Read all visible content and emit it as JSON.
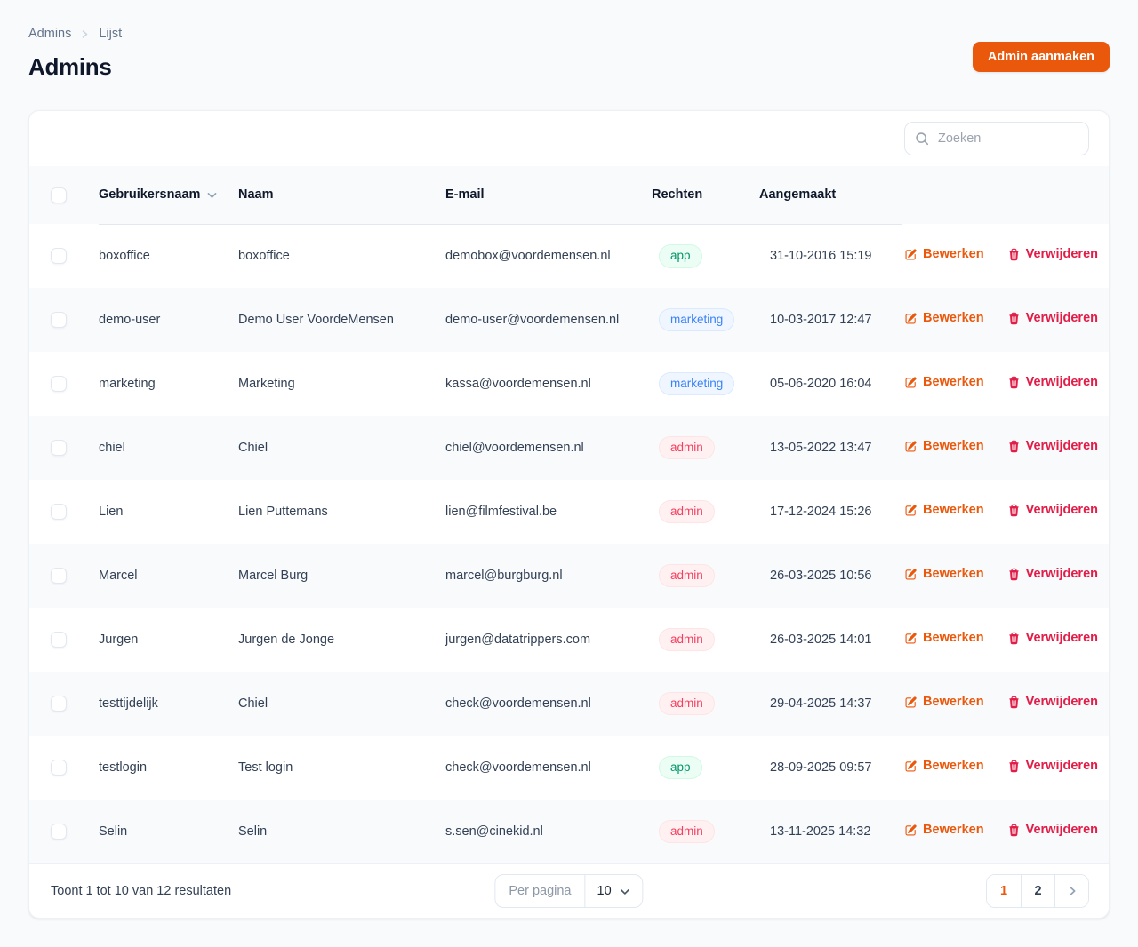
{
  "page": {
    "breadcrumb": [
      "Admins",
      "Lijst"
    ],
    "title": "Admins",
    "create_button_label": "Admin aanmaken"
  },
  "table": {
    "search_placeholder": "Zoeken",
    "columns": [
      "Gebruikersnaam",
      "Naam",
      "E-mail",
      "Rechten",
      "Aangemaakt"
    ],
    "sorted_column": "Gebruikersnaam",
    "actions": {
      "edit": "Bewerken",
      "delete": "Verwijderen"
    },
    "rows": [
      {
        "username": "boxoffice",
        "name": "boxoffice",
        "email": "demobox@voordemensen.nl",
        "role": "app",
        "created": "31-10-2016 15:19"
      },
      {
        "username": "demo-user",
        "name": "Demo User VoordeMensen",
        "email": "demo-user@voordemensen.nl",
        "role": "marketing",
        "created": "10-03-2017 12:47"
      },
      {
        "username": "marketing",
        "name": "Marketing",
        "email": "kassa@voordemensen.nl",
        "role": "marketing",
        "created": "05-06-2020 16:04"
      },
      {
        "username": "chiel",
        "name": "Chiel",
        "email": "chiel@voordemensen.nl",
        "role": "admin",
        "created": "13-05-2022 13:47"
      },
      {
        "username": "Lien",
        "name": "Lien Puttemans",
        "email": "lien@filmfestival.be",
        "role": "admin",
        "created": "17-12-2024 15:26"
      },
      {
        "username": "Marcel",
        "name": "Marcel Burg",
        "email": "marcel@burgburg.nl",
        "role": "admin",
        "created": "26-03-2025 10:56"
      },
      {
        "username": "Jurgen",
        "name": "Jurgen de Jonge",
        "email": "jurgen@datatrippers.com",
        "role": "admin",
        "created": "26-03-2025 14:01"
      },
      {
        "username": "testtijdelijk",
        "name": "Chiel",
        "email": "check@voordemensen.nl",
        "role": "admin",
        "created": "29-04-2025 14:37"
      },
      {
        "username": "testlogin",
        "name": "Test login",
        "email": "check@voordemensen.nl",
        "role": "app",
        "created": "28-09-2025 09:57"
      },
      {
        "username": "Selin",
        "name": "Selin",
        "email": "s.sen@cinekid.nl",
        "role": "admin",
        "created": "13-11-2025 14:32"
      }
    ],
    "footer": {
      "results_text": "Toont 1 tot 10 van 12 resultaten",
      "per_page_label": "Per pagina",
      "per_page_value": "10",
      "pages": [
        "1",
        "2"
      ],
      "active_page": "1"
    }
  },
  "colors": {
    "accent_orange": "#EA580C",
    "delete_red": "#E11D48",
    "page_background": "#F8FAFC",
    "badges": {
      "app": {
        "text": "#059669",
        "bg": "#ECFDF5",
        "border": "#D1FAE5"
      },
      "marketing": {
        "text": "#3B82F6",
        "bg": "#EFF6FF",
        "border": "#DBEAFE"
      },
      "admin": {
        "text": "#F43F5E",
        "bg": "#FFF1F2",
        "border": "#FFE4E6"
      }
    }
  }
}
